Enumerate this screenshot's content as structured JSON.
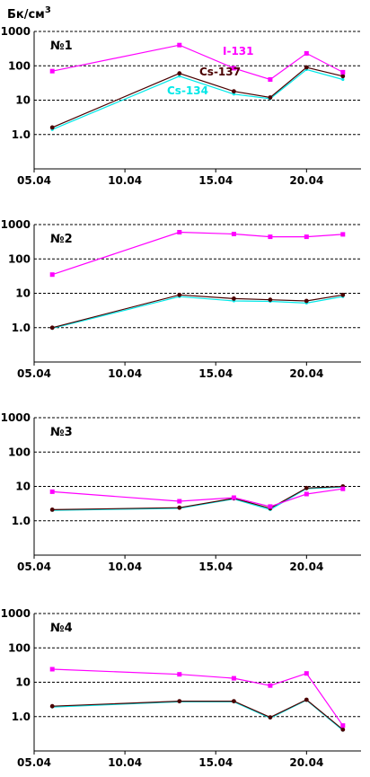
{
  "unit": {
    "base": "Бк/см",
    "sup": "3"
  },
  "colors": {
    "I-131": "#ff00ff",
    "Cs-137": "#4a0000",
    "Cs-134": "#00e8e8",
    "axis": "#000000",
    "grid": "#000000"
  },
  "chart_data": [
    {
      "type": "line",
      "title": "№1",
      "yscale": "log",
      "ylim": [
        0.1,
        1000
      ],
      "y_ticks": [
        "1000",
        "100",
        "10",
        "1.0"
      ],
      "x_ticks": [
        "05.04",
        "10.04",
        "15.04",
        "20.04"
      ],
      "xlim": [
        "05.04",
        "23.04"
      ],
      "grid": "dashed horizontal",
      "series_labels_shown": [
        "I-131",
        "Cs-137",
        "Cs-134"
      ],
      "series": [
        {
          "name": "I-131",
          "x": [
            "06.04",
            "13.04",
            "16.04",
            "18.04",
            "20.04",
            "22.04"
          ],
          "values": [
            70,
            400,
            85,
            40,
            230,
            65
          ]
        },
        {
          "name": "Cs-137",
          "x": [
            "06.04",
            "13.04",
            "16.04",
            "18.04",
            "20.04",
            "22.04"
          ],
          "values": [
            1.6,
            60,
            18,
            12,
            90,
            50
          ]
        },
        {
          "name": "Cs-134",
          "x": [
            "06.04",
            "13.04",
            "16.04",
            "18.04",
            "20.04",
            "22.04"
          ],
          "values": [
            1.4,
            50,
            15,
            11,
            78,
            40
          ]
        }
      ]
    },
    {
      "type": "line",
      "title": "№2",
      "yscale": "log",
      "ylim": [
        0.1,
        1000
      ],
      "y_ticks": [
        "1000",
        "100",
        "10",
        "1.0"
      ],
      "x_ticks": [
        "05.04",
        "10.04",
        "15.04",
        "20.04"
      ],
      "xlim": [
        "05.04",
        "23.04"
      ],
      "grid": "dashed horizontal",
      "series": [
        {
          "name": "I-131",
          "x": [
            "06.04",
            "13.04",
            "16.04",
            "18.04",
            "20.04",
            "22.04"
          ],
          "values": [
            35,
            600,
            530,
            440,
            440,
            520
          ]
        },
        {
          "name": "Cs-137",
          "x": [
            "06.04",
            "13.04",
            "16.04",
            "18.04",
            "20.04",
            "22.04"
          ],
          "values": [
            1.0,
            9,
            7,
            6.5,
            6,
            9
          ]
        },
        {
          "name": "Cs-134",
          "x": [
            "06.04",
            "13.04",
            "16.04",
            "18.04",
            "20.04",
            "22.04"
          ],
          "values": [
            0.95,
            8,
            6,
            5.8,
            5.2,
            8
          ]
        }
      ]
    },
    {
      "type": "line",
      "title": "№3",
      "yscale": "log",
      "ylim": [
        0.1,
        1000
      ],
      "y_ticks": [
        "1000",
        "100",
        "10",
        "1.0"
      ],
      "x_ticks": [
        "05.04",
        "10.04",
        "15.04",
        "20.04"
      ],
      "xlim": [
        "05.04",
        "23.04"
      ],
      "grid": "dashed horizontal",
      "series": [
        {
          "name": "I-131",
          "x": [
            "06.04",
            "13.04",
            "16.04",
            "18.04",
            "20.04",
            "22.04"
          ],
          "values": [
            7,
            3.7,
            4.7,
            2.6,
            6,
            8.5
          ]
        },
        {
          "name": "Cs-137",
          "x": [
            "06.04",
            "13.04",
            "16.04",
            "18.04",
            "20.04",
            "22.04"
          ],
          "values": [
            2.1,
            2.4,
            4.5,
            2.3,
            9,
            10
          ]
        },
        {
          "name": "Cs-134",
          "x": [
            "06.04",
            "13.04",
            "16.04",
            "18.04",
            "20.04",
            "22.04"
          ],
          "values": [
            2.0,
            2.3,
            4.3,
            2.1,
            8.6,
            9.6
          ]
        }
      ]
    },
    {
      "type": "line",
      "title": "№4",
      "yscale": "log",
      "ylim": [
        0.1,
        1000
      ],
      "y_ticks": [
        "1000",
        "100",
        "10",
        "1.0"
      ],
      "x_ticks": [
        "05.04",
        "10.04",
        "15.04",
        "20.04"
      ],
      "xlim": [
        "05.04",
        "23.04"
      ],
      "grid": "dashed horizontal",
      "series": [
        {
          "name": "I-131",
          "x": [
            "06.04",
            "13.04",
            "16.04",
            "18.04",
            "20.04",
            "22.04"
          ],
          "values": [
            24,
            17,
            13,
            8,
            18,
            0.55
          ]
        },
        {
          "name": "Cs-137",
          "x": [
            "06.04",
            "13.04",
            "16.04",
            "18.04",
            "20.04",
            "22.04"
          ],
          "values": [
            2.0,
            2.8,
            2.8,
            0.95,
            3.1,
            0.42
          ]
        },
        {
          "name": "Cs-134",
          "x": [
            "06.04",
            "13.04",
            "16.04",
            "18.04",
            "20.04",
            "22.04"
          ],
          "values": [
            1.9,
            2.7,
            2.7,
            0.9,
            3.0,
            0.4
          ]
        }
      ]
    }
  ]
}
